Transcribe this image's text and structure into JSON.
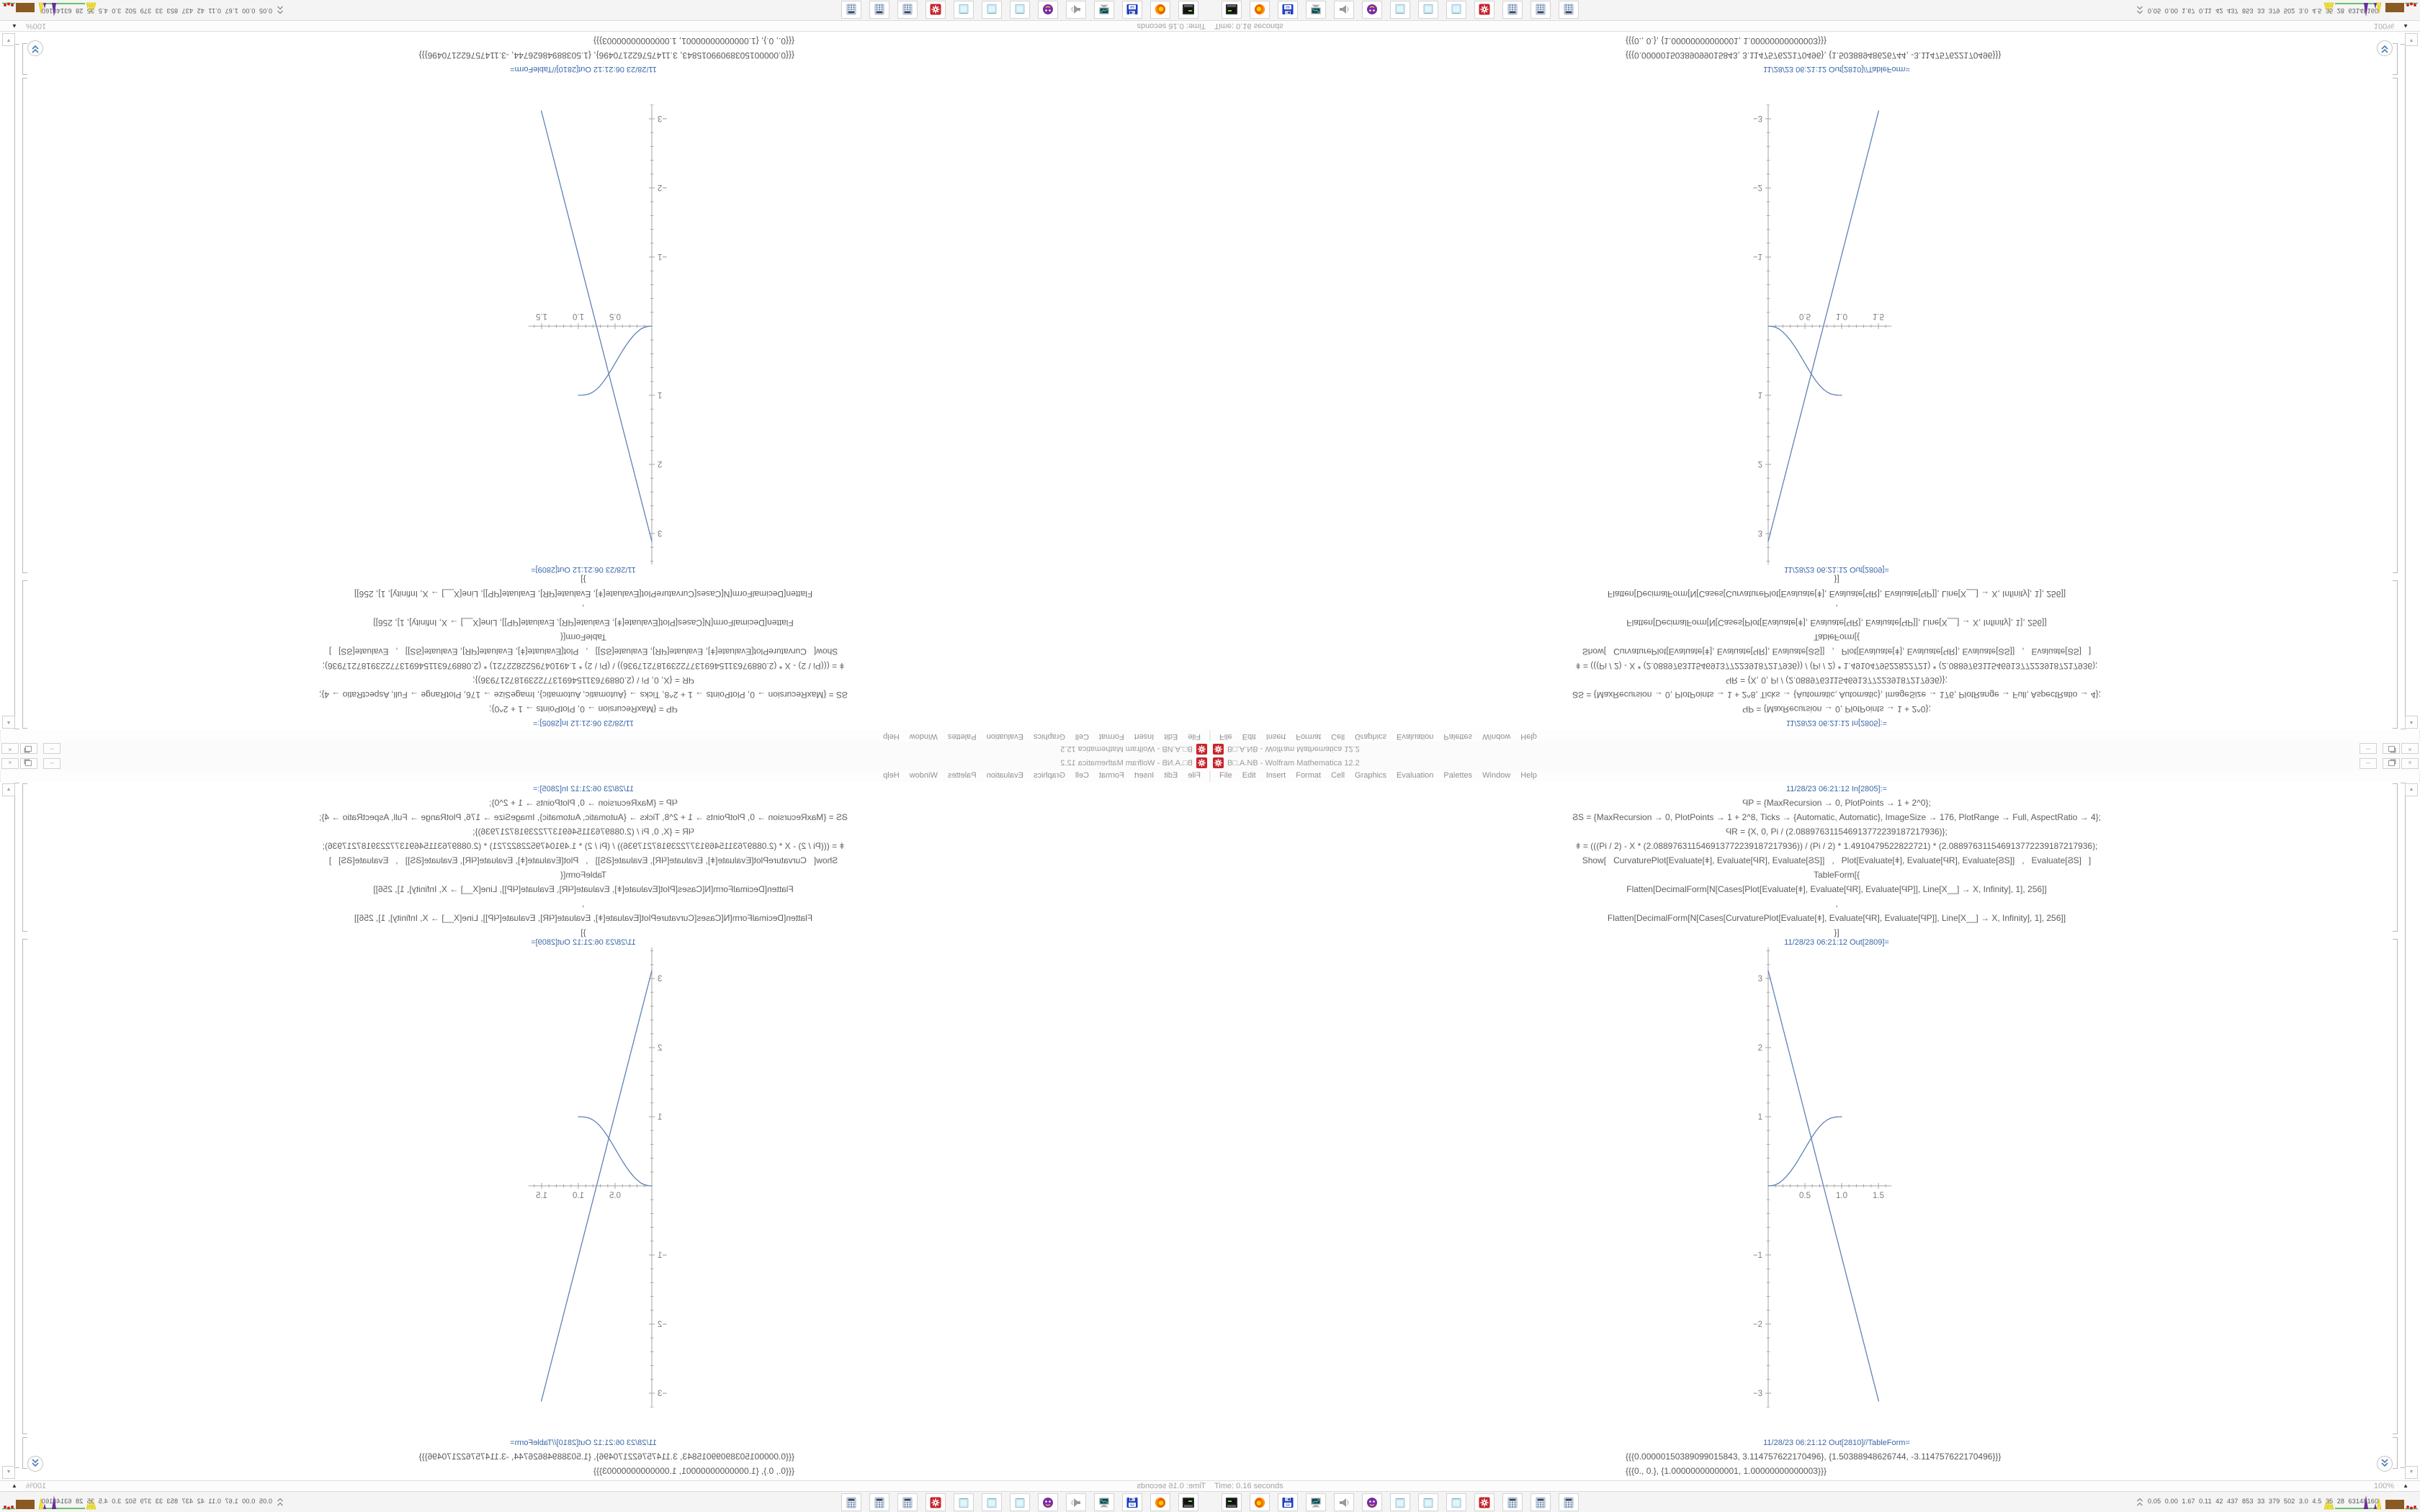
{
  "window": {
    "title": "B□.A.NB - Wolfram Mathematica 12.2",
    "menu_items": [
      "File",
      "Edit",
      "Insert",
      "Format",
      "Cell",
      "Graphics",
      "Evaluation",
      "Palettes",
      "Window",
      "Help"
    ],
    "controls": {
      "minimize": "–",
      "close": "×"
    }
  },
  "notebook": {
    "in_label": "11/28/23 06:21:12 In[2805]:=",
    "code_lines": [
      "ϤP = {MaxRecursion → 0, PlotPoints → 1 + 2^0};",
      "ϨS = {MaxRecursion → 0, PlotPoints → 1 + 2^8, Ticks → {Automatic, Automatic}, ImageSize → 176, PlotRange → Full, AspectRatio → 4};",
      "ϤR = {X, 0, Pi / (2.088976311546913772239187217936)};",
      "ǂ = (((Pi / 2) - X * (2.088976311546913772239187217936)) / (Pi / 2) * 1.4910479522822721) * (2.088976311546913772239187217936);",
      "Show[   CurvaturePlot[Evaluate[ǂ], Evaluate[ϤR], Evaluate[ϨS]]   ,   Plot[Evaluate[ǂ], Evaluate[ϤR], Evaluate[ϨS]]   ,   Evaluate[ϨS]   ]",
      "TableForm[{",
      "Flatten[DecimalForm[N[Cases[Plot[Evaluate[ǂ], Evaluate[ϤR], Evaluate[ϤP]], Line[X__] → X, Infinity], 1], 256]]",
      ",",
      "Flatten[DecimalForm[N[Cases[CurvaturePlot[Evaluate[ǂ], Evaluate[ϤR], Evaluate[ϤP]], Line[X__] → X, Infinity], 1], 256]]",
      "}]"
    ],
    "out1_label": "11/28/23 06:21:12 Out[2809]=",
    "out2_label": "11/28/23 06:21:12 Out[2810]//TableForm=",
    "table_rows": [
      "{{{0.00000150389099015843, 3.114757622170496}, {1.50388948626744, -3.114757622170496}}}",
      "{{{0., 0.}, {1.00000000000001, 1.00000000000003}}}"
    ]
  },
  "status_bar": {
    "time_text": "Time: 0.16 seconds",
    "zoom_text": "100%"
  },
  "taskbar": {
    "launchers": [
      "terminal",
      "firefox",
      "floppy-64",
      "system-monitor",
      "speaker",
      "purple-bot",
      "notepad",
      "notepad",
      "notepad",
      "wolfram-red",
      "calculator",
      "calculator",
      "calculator"
    ],
    "monitor_values": [
      "0.05",
      "0.00",
      "1.67",
      "0.11",
      "42",
      "437",
      "853",
      "33",
      "379",
      "502",
      "3.0",
      "4.5",
      "35",
      "28",
      "63148160"
    ]
  },
  "colors": {
    "curve_blue": "#5e81b5",
    "axis_gray": "#a6a6a6",
    "tick_label_gray": "#7c7c7c",
    "cell_label_blue": "#3a67a8",
    "app_icon_red": "#c8232c"
  },
  "chart_data": {
    "type": "line",
    "title": "",
    "xlabel": "",
    "ylabel": "",
    "xlim": [
      0,
      1.68
    ],
    "ylim": [
      -3.19,
      3.45
    ],
    "xticks": [
      0.5,
      1.0,
      1.5
    ],
    "yticks": [
      -3,
      -2,
      -1,
      1,
      2,
      3
    ],
    "grid": false,
    "legend": "none",
    "series": [
      {
        "name": "Plot[ǂ] straight line",
        "points": [
          [
            1.5038909902e-06,
            3.114757622170496
          ],
          [
            1.50388948626744,
            -3.114757622170496
          ]
        ]
      },
      {
        "name": "CurvaturePlot[ǂ] sigmoid",
        "points": [
          [
            0,
            0
          ],
          [
            0.05,
            0.004
          ],
          [
            0.1,
            0.016
          ],
          [
            0.15,
            0.042
          ],
          [
            0.2,
            0.085
          ],
          [
            0.25,
            0.138
          ],
          [
            0.3,
            0.202
          ],
          [
            0.35,
            0.276
          ],
          [
            0.4,
            0.358
          ],
          [
            0.45,
            0.447
          ],
          [
            0.5,
            0.538
          ],
          [
            0.55,
            0.628
          ],
          [
            0.6,
            0.714
          ],
          [
            0.65,
            0.792
          ],
          [
            0.7,
            0.858
          ],
          [
            0.75,
            0.912
          ],
          [
            0.8,
            0.952
          ],
          [
            0.85,
            0.979
          ],
          [
            0.9,
            0.993
          ],
          [
            0.95,
            0.999
          ],
          [
            1.0,
            1.0
          ]
        ]
      }
    ]
  }
}
